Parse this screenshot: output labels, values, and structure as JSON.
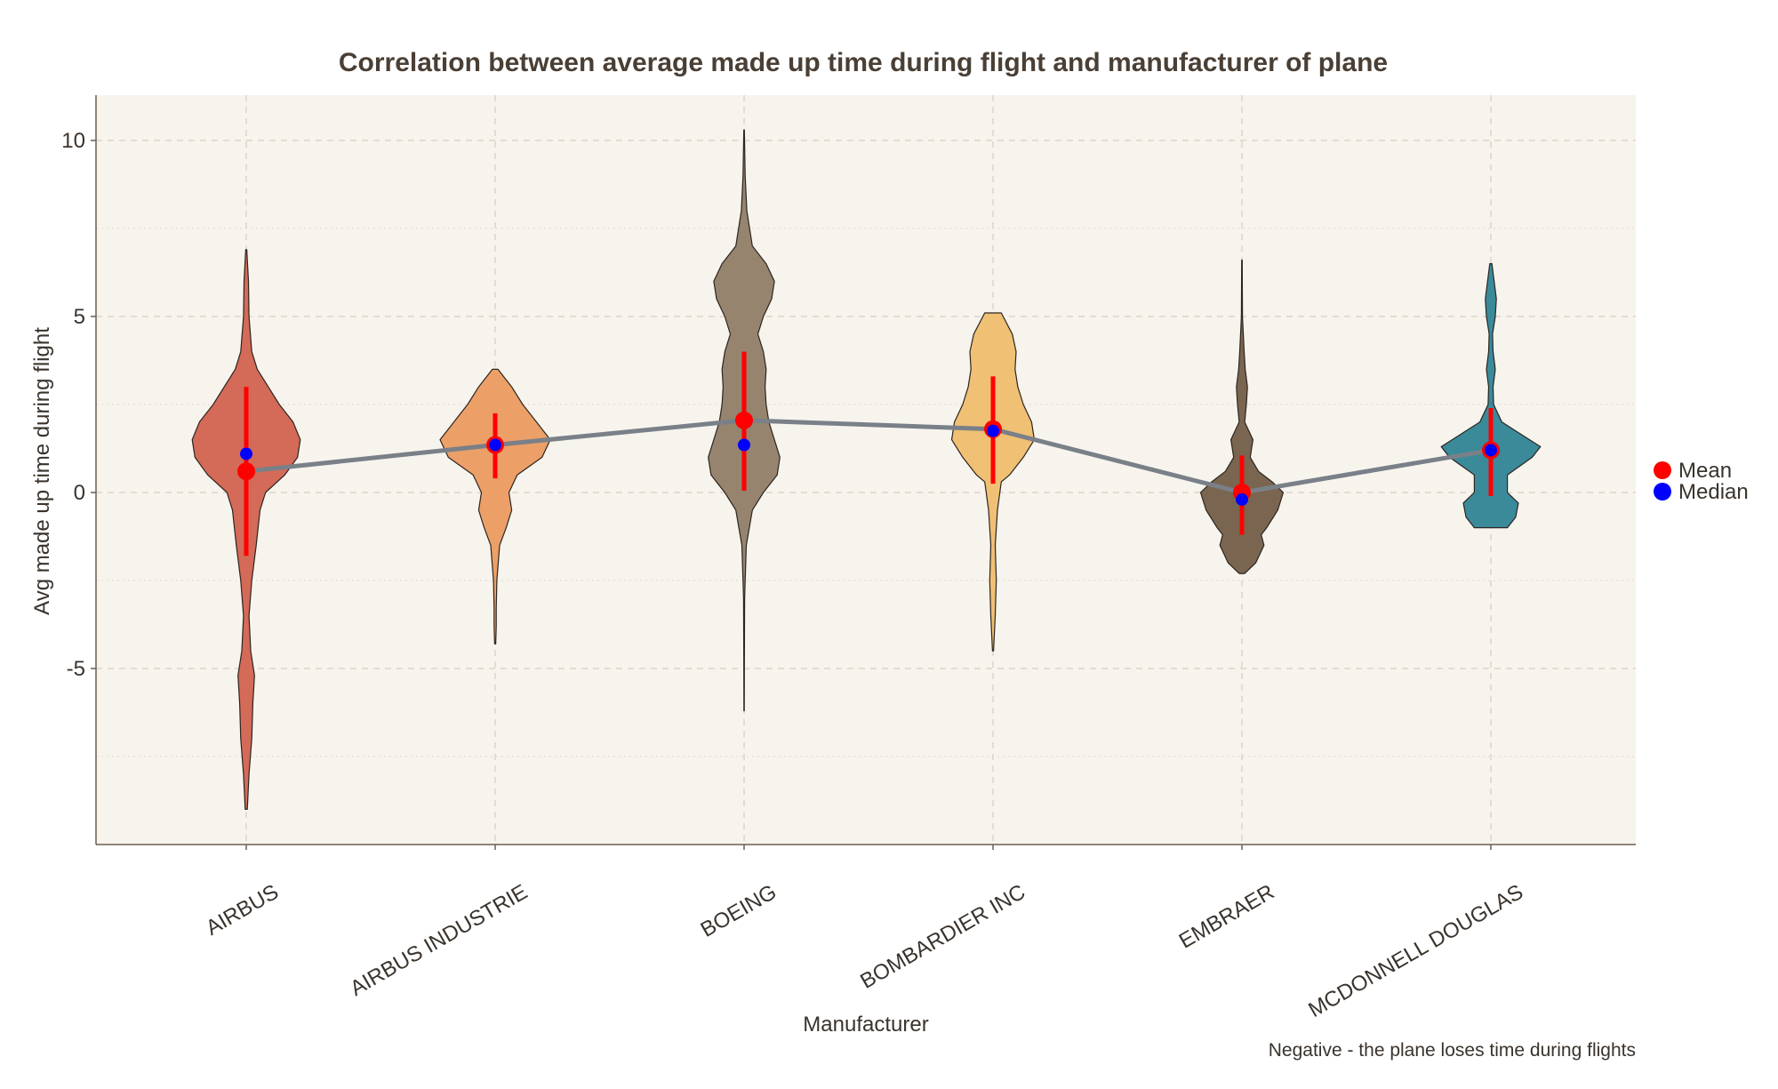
{
  "chart_data": {
    "type": "violin",
    "title": "Correlation between average made up time during flight and manufacturer of plane",
    "xlabel": "Manufacturer",
    "ylabel": "Avg made up time during flight",
    "caption": "Negative - the plane loses time during flights",
    "categories": [
      "AIRBUS",
      "AIRBUS INDUSTRIE",
      "BOEING",
      "BOMBARDIER INC",
      "EMBRAER",
      "MCDONNELL DOUGLAS"
    ],
    "yticks": [
      -5,
      0,
      5,
      10
    ],
    "ylim": [
      -10,
      11.3
    ],
    "grid": true,
    "legend_position": "right",
    "legend": [
      {
        "label": "Mean",
        "color": "#ff0000"
      },
      {
        "label": "Median",
        "color": "#0000ff"
      }
    ],
    "line_color": "#7a8088",
    "background": "#f7f4ee",
    "violins": [
      {
        "name": "AIRBUS",
        "color": "#d46a58",
        "mean": 0.6,
        "median": 1.1,
        "range": [
          -1.8,
          3.0
        ],
        "profile": [
          [
            -9,
            0.02
          ],
          [
            -8,
            0.05
          ],
          [
            -7,
            0.1
          ],
          [
            -6,
            0.12
          ],
          [
            -5.2,
            0.15
          ],
          [
            -4.5,
            0.08
          ],
          [
            -3.5,
            0.05
          ],
          [
            -2.5,
            0.1
          ],
          [
            -1.5,
            0.18
          ],
          [
            -0.5,
            0.25
          ],
          [
            0,
            0.35
          ],
          [
            0.5,
            0.7
          ],
          [
            1,
            0.93
          ],
          [
            1.5,
            0.98
          ],
          [
            2,
            0.85
          ],
          [
            2.5,
            0.6
          ],
          [
            3,
            0.4
          ],
          [
            3.5,
            0.2
          ],
          [
            4,
            0.1
          ],
          [
            5,
            0.05
          ],
          [
            6,
            0.04
          ],
          [
            6.9,
            0.01
          ]
        ]
      },
      {
        "name": "AIRBUS INDUSTRIE",
        "color": "#eca068",
        "mean": 1.35,
        "median": 1.35,
        "range": [
          0.4,
          2.25
        ],
        "profile": [
          [
            -4.3,
            0.01
          ],
          [
            -3.8,
            0.02
          ],
          [
            -3.3,
            0.02
          ],
          [
            -2.5,
            0.03
          ],
          [
            -1.5,
            0.08
          ],
          [
            -1,
            0.2
          ],
          [
            -0.5,
            0.3
          ],
          [
            0,
            0.25
          ],
          [
            0.5,
            0.4
          ],
          [
            1,
            0.85
          ],
          [
            1.5,
            1.0
          ],
          [
            2,
            0.75
          ],
          [
            2.5,
            0.5
          ],
          [
            3,
            0.3
          ],
          [
            3.5,
            0.05
          ]
        ]
      },
      {
        "name": "BOEING",
        "color": "#96846e",
        "mean": 2.05,
        "median": 1.35,
        "range": [
          0.05,
          4.0
        ],
        "profile": [
          [
            -6.2,
            0.003
          ],
          [
            -5,
            0.005
          ],
          [
            -3,
            0.01
          ],
          [
            -1.5,
            0.04
          ],
          [
            -0.5,
            0.15
          ],
          [
            0,
            0.35
          ],
          [
            0.5,
            0.6
          ],
          [
            1,
            0.65
          ],
          [
            1.5,
            0.55
          ],
          [
            2,
            0.45
          ],
          [
            2.5,
            0.4
          ],
          [
            3,
            0.38
          ],
          [
            3.5,
            0.4
          ],
          [
            4,
            0.35
          ],
          [
            4.5,
            0.25
          ],
          [
            5,
            0.35
          ],
          [
            5.5,
            0.5
          ],
          [
            6,
            0.55
          ],
          [
            6.5,
            0.4
          ],
          [
            7,
            0.15
          ],
          [
            8,
            0.05
          ],
          [
            9,
            0.02
          ],
          [
            10.3,
            0.005
          ]
        ]
      },
      {
        "name": "BOMBARDIER INC",
        "color": "#f0c074",
        "mean": 1.8,
        "median": 1.75,
        "range": [
          0.25,
          3.3
        ],
        "profile": [
          [
            -4.5,
            0.01
          ],
          [
            -3.5,
            0.04
          ],
          [
            -2.5,
            0.06
          ],
          [
            -1.5,
            0.04
          ],
          [
            -0.5,
            0.08
          ],
          [
            0.3,
            0.15
          ],
          [
            0.5,
            0.3
          ],
          [
            1,
            0.55
          ],
          [
            1.5,
            0.75
          ],
          [
            2,
            0.7
          ],
          [
            2.5,
            0.55
          ],
          [
            3,
            0.45
          ],
          [
            3.5,
            0.4
          ],
          [
            4,
            0.42
          ],
          [
            4.5,
            0.35
          ],
          [
            5.1,
            0.15
          ]
        ]
      },
      {
        "name": "EMBRAER",
        "color": "#7a6550",
        "mean": 0.0,
        "median": -0.2,
        "range": [
          -1.2,
          1.05
        ],
        "profile": [
          [
            -2.3,
            0.05
          ],
          [
            -2,
            0.25
          ],
          [
            -1.5,
            0.4
          ],
          [
            -1.2,
            0.35
          ],
          [
            -1,
            0.45
          ],
          [
            -0.5,
            0.65
          ],
          [
            0,
            0.75
          ],
          [
            0.3,
            0.55
          ],
          [
            0.6,
            0.3
          ],
          [
            1,
            0.15
          ],
          [
            1.5,
            0.2
          ],
          [
            2,
            0.05
          ],
          [
            2.5,
            0.08
          ],
          [
            3,
            0.1
          ],
          [
            3.5,
            0.06
          ],
          [
            4,
            0.04
          ],
          [
            5,
            0.01
          ],
          [
            6.6,
            0.005
          ]
        ]
      },
      {
        "name": "MCDONNELL DOUGLAS",
        "color": "#3a8a9a",
        "mean": 1.2,
        "median": 1.2,
        "range": [
          -0.1,
          2.4
        ],
        "profile": [
          [
            -1,
            0.3
          ],
          [
            -0.7,
            0.45
          ],
          [
            -0.3,
            0.5
          ],
          [
            0,
            0.3
          ],
          [
            0.5,
            0.3
          ],
          [
            1,
            0.75
          ],
          [
            1.3,
            0.9
          ],
          [
            1.6,
            0.6
          ],
          [
            2,
            0.2
          ],
          [
            2.5,
            0.05
          ],
          [
            3,
            0.04
          ],
          [
            3.5,
            0.08
          ],
          [
            4,
            0.04
          ],
          [
            4.5,
            0.03
          ],
          [
            5,
            0.08
          ],
          [
            5.5,
            0.1
          ],
          [
            6,
            0.06
          ],
          [
            6.5,
            0.02
          ]
        ]
      }
    ]
  }
}
